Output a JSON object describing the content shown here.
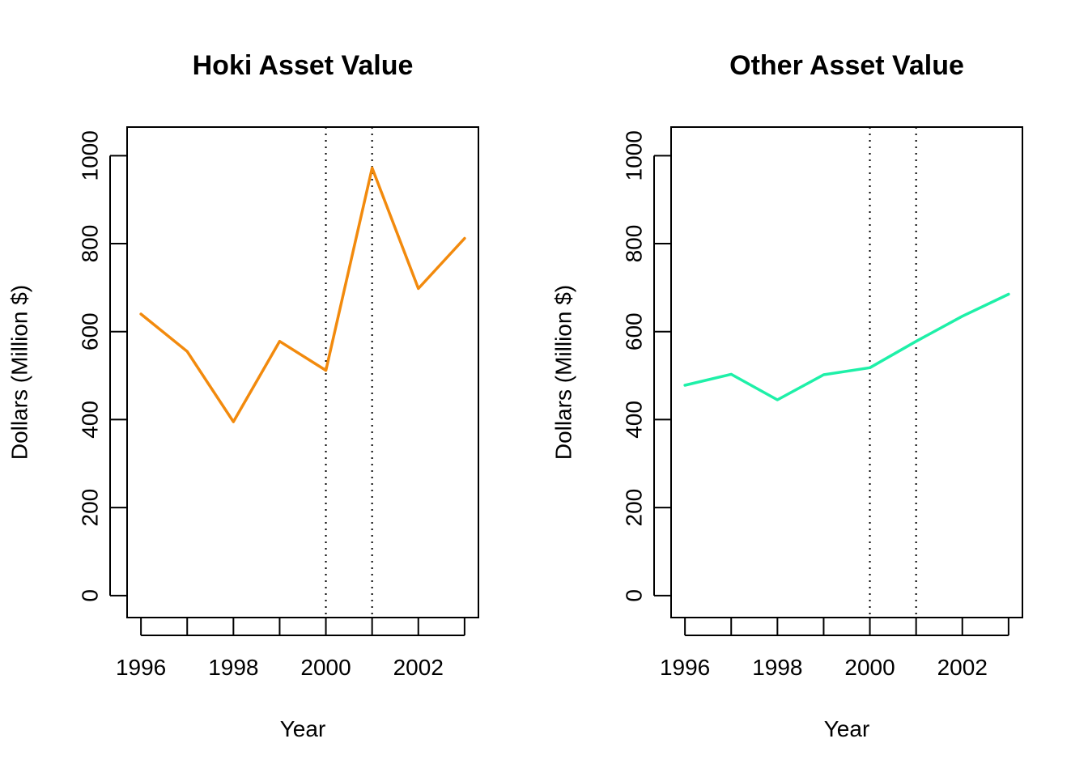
{
  "chart_data": [
    {
      "type": "line",
      "title": "Hoki Asset Value",
      "xlabel": "Year",
      "ylabel": "Dollars (Million $)",
      "x": [
        1996,
        1997,
        1998,
        1999,
        2000,
        2001,
        2002,
        2003
      ],
      "series": [
        {
          "values": [
            640,
            555,
            395,
            578,
            512,
            972,
            698,
            812
          ],
          "color": "#f28a0d"
        }
      ],
      "xlim": [
        1995.7,
        2003.3
      ],
      "ylim": [
        -50,
        1065
      ],
      "xticks": [
        1996,
        1997,
        1998,
        1999,
        2000,
        2001,
        2002,
        2003
      ],
      "xtick_labels": [
        "1996",
        "",
        "1998",
        "",
        "2000",
        "",
        "2002",
        ""
      ],
      "yticks": [
        0,
        200,
        400,
        600,
        800,
        1000
      ],
      "ytick_labels": [
        "0",
        "200",
        "400",
        "600",
        "800",
        "1000"
      ],
      "vlines": [
        2000,
        2001
      ],
      "grid": false
    },
    {
      "type": "line",
      "title": "Other Asset Value",
      "xlabel": "Year",
      "ylabel": "Dollars (Million $)",
      "x": [
        1996,
        1997,
        1998,
        1999,
        2000,
        2001,
        2002,
        2003
      ],
      "series": [
        {
          "values": [
            478,
            503,
            445,
            502,
            518,
            578,
            635,
            685
          ],
          "color": "#1ef0a8"
        }
      ],
      "xlim": [
        1995.7,
        2003.3
      ],
      "ylim": [
        -50,
        1065
      ],
      "xticks": [
        1996,
        1997,
        1998,
        1999,
        2000,
        2001,
        2002,
        2003
      ],
      "xtick_labels": [
        "1996",
        "",
        "1998",
        "",
        "2000",
        "",
        "2002",
        ""
      ],
      "yticks": [
        0,
        200,
        400,
        600,
        800,
        1000
      ],
      "ytick_labels": [
        "0",
        "200",
        "400",
        "600",
        "800",
        "1000"
      ],
      "vlines": [
        2000,
        2001
      ],
      "grid": false
    }
  ]
}
